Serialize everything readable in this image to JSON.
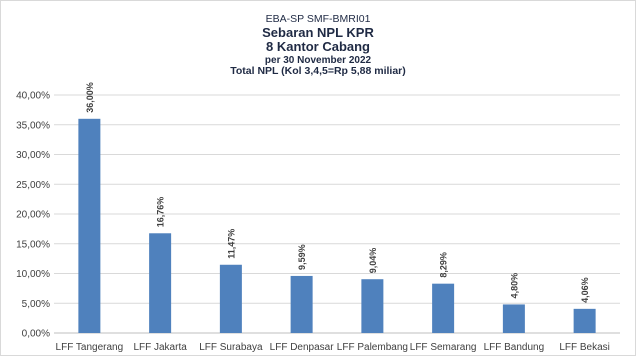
{
  "chart_data": {
    "type": "bar",
    "title_lines": [
      "EBA-SP  SMF-BMRI01",
      "Sebaran NPL KPR",
      "8 Kantor Cabang",
      "per 30 November 2022",
      "Total NPL (Kol 3,4,5=Rp 5,88 miliar)"
    ],
    "categories": [
      "LFF Tangerang",
      "LFF Jakarta",
      "LFF Surabaya",
      "LFF Denpasar",
      "LFF Palembang",
      "LFF Semarang",
      "LFF Bandung",
      "LFF Bekasi"
    ],
    "values": [
      36.0,
      16.76,
      11.47,
      9.59,
      9.04,
      8.29,
      4.8,
      4.06
    ],
    "data_labels": [
      "36,00%",
      "16,76%",
      "11,47%",
      "9,59%",
      "9,04%",
      "8,29%",
      "4,80%",
      "4,06%"
    ],
    "ylim": [
      0,
      40
    ],
    "y_ticks": [
      0,
      5,
      10,
      15,
      20,
      25,
      30,
      35,
      40
    ],
    "y_tick_labels": [
      "0,00%",
      "5,00%",
      "10,00%",
      "15,00%",
      "20,00%",
      "25,00%",
      "30,00%",
      "35,00%",
      "40,00%"
    ],
    "grid": true,
    "legend": "none",
    "bar_color": "#4f81bd",
    "grid_color": "#d9d9d9",
    "text_color": "#404040"
  }
}
